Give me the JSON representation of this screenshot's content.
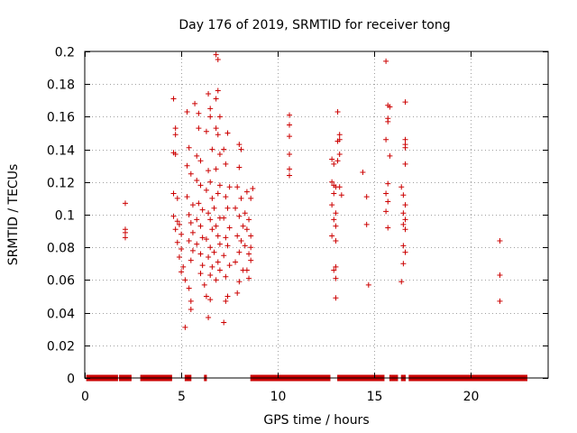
{
  "chart_data": {
    "type": "scatter",
    "title": "Day 176 of 2019, SRMTID for receiver tong",
    "xlabel": "GPS time / hours",
    "ylabel": "SRMTID / TECUs",
    "xlim": [
      0,
      24
    ],
    "ylim": [
      0,
      0.2
    ],
    "xticks": [
      0,
      5,
      10,
      15,
      20
    ],
    "xtick_labels": [
      "0",
      "5",
      "10",
      "15",
      "20"
    ],
    "yticks": [
      0,
      0.02,
      0.04,
      0.06,
      0.08,
      0.1,
      0.12,
      0.14,
      0.16,
      0.18,
      0.2
    ],
    "ytick_labels": [
      "0",
      "0.02",
      "0.04",
      "0.06",
      "0.08",
      "0.1",
      "0.12",
      "0.14",
      "0.16",
      "0.18",
      "0.2"
    ],
    "grid": true,
    "marker": "+",
    "color": "#cc0000",
    "series": [
      {
        "name": "SRMTID",
        "points": [
          [
            2.1,
            0.107
          ],
          [
            2.1,
            0.091
          ],
          [
            2.1,
            0.089
          ],
          [
            2.1,
            0.086
          ],
          [
            4.6,
            0.171
          ],
          [
            4.7,
            0.153
          ],
          [
            4.7,
            0.149
          ],
          [
            4.6,
            0.138
          ],
          [
            4.7,
            0.137
          ],
          [
            4.6,
            0.113
          ],
          [
            4.8,
            0.11
          ],
          [
            4.6,
            0.099
          ],
          [
            4.8,
            0.096
          ],
          [
            4.9,
            0.094
          ],
          [
            4.7,
            0.091
          ],
          [
            5.0,
            0.088
          ],
          [
            4.8,
            0.083
          ],
          [
            5.0,
            0.079
          ],
          [
            4.9,
            0.074
          ],
          [
            5.1,
            0.068
          ],
          [
            5.0,
            0.065
          ],
          [
            5.2,
            0.06
          ],
          [
            5.3,
            0.163
          ],
          [
            5.4,
            0.141
          ],
          [
            5.3,
            0.13
          ],
          [
            5.5,
            0.125
          ],
          [
            5.3,
            0.111
          ],
          [
            5.6,
            0.106
          ],
          [
            5.4,
            0.1
          ],
          [
            5.5,
            0.095
          ],
          [
            5.6,
            0.089
          ],
          [
            5.4,
            0.084
          ],
          [
            5.6,
            0.078
          ],
          [
            5.5,
            0.072
          ],
          [
            5.4,
            0.055
          ],
          [
            5.5,
            0.047
          ],
          [
            5.5,
            0.042
          ],
          [
            5.2,
            0.031
          ],
          [
            5.7,
            0.168
          ],
          [
            5.9,
            0.162
          ],
          [
            5.9,
            0.153
          ],
          [
            5.8,
            0.136
          ],
          [
            6.0,
            0.133
          ],
          [
            5.8,
            0.121
          ],
          [
            6.0,
            0.118
          ],
          [
            5.9,
            0.107
          ],
          [
            6.1,
            0.103
          ],
          [
            5.8,
            0.097
          ],
          [
            6.0,
            0.093
          ],
          [
            6.1,
            0.086
          ],
          [
            5.8,
            0.082
          ],
          [
            6.0,
            0.076
          ],
          [
            6.1,
            0.069
          ],
          [
            6.0,
            0.064
          ],
          [
            6.2,
            0.057
          ],
          [
            6.4,
            0.174
          ],
          [
            6.5,
            0.165
          ],
          [
            6.5,
            0.16
          ],
          [
            6.3,
            0.151
          ],
          [
            6.6,
            0.14
          ],
          [
            6.4,
            0.127
          ],
          [
            6.5,
            0.12
          ],
          [
            6.3,
            0.115
          ],
          [
            6.6,
            0.11
          ],
          [
            6.4,
            0.101
          ],
          [
            6.5,
            0.097
          ],
          [
            6.6,
            0.091
          ],
          [
            6.3,
            0.085
          ],
          [
            6.5,
            0.08
          ],
          [
            6.4,
            0.074
          ],
          [
            6.6,
            0.068
          ],
          [
            6.5,
            0.063
          ],
          [
            6.3,
            0.05
          ],
          [
            6.5,
            0.048
          ],
          [
            6.4,
            0.037
          ],
          [
            6.8,
            0.198
          ],
          [
            6.9,
            0.195
          ],
          [
            6.9,
            0.176
          ],
          [
            6.8,
            0.171
          ],
          [
            7.0,
            0.16
          ],
          [
            6.8,
            0.153
          ],
          [
            6.9,
            0.149
          ],
          [
            7.0,
            0.137
          ],
          [
            6.8,
            0.128
          ],
          [
            7.0,
            0.118
          ],
          [
            6.9,
            0.113
          ],
          [
            6.7,
            0.104
          ],
          [
            7.0,
            0.098
          ],
          [
            6.8,
            0.093
          ],
          [
            6.9,
            0.087
          ],
          [
            7.0,
            0.082
          ],
          [
            6.7,
            0.077
          ],
          [
            6.9,
            0.071
          ],
          [
            7.0,
            0.066
          ],
          [
            6.8,
            0.06
          ],
          [
            7.4,
            0.15
          ],
          [
            7.2,
            0.14
          ],
          [
            7.3,
            0.131
          ],
          [
            7.5,
            0.117
          ],
          [
            7.3,
            0.111
          ],
          [
            7.4,
            0.104
          ],
          [
            7.2,
            0.098
          ],
          [
            7.5,
            0.092
          ],
          [
            7.3,
            0.086
          ],
          [
            7.4,
            0.081
          ],
          [
            7.2,
            0.075
          ],
          [
            7.5,
            0.069
          ],
          [
            7.3,
            0.062
          ],
          [
            7.4,
            0.05
          ],
          [
            7.3,
            0.047
          ],
          [
            7.2,
            0.034
          ],
          [
            8.0,
            0.143
          ],
          [
            8.1,
            0.14
          ],
          [
            8.0,
            0.129
          ],
          [
            7.9,
            0.117
          ],
          [
            8.1,
            0.11
          ],
          [
            7.8,
            0.104
          ],
          [
            8.0,
            0.099
          ],
          [
            8.2,
            0.093
          ],
          [
            7.9,
            0.087
          ],
          [
            8.1,
            0.084
          ],
          [
            8.0,
            0.077
          ],
          [
            7.8,
            0.071
          ],
          [
            8.2,
            0.066
          ],
          [
            8.0,
            0.059
          ],
          [
            7.9,
            0.052
          ],
          [
            8.4,
            0.114
          ],
          [
            8.6,
            0.11
          ],
          [
            8.3,
            0.101
          ],
          [
            8.5,
            0.097
          ],
          [
            8.4,
            0.091
          ],
          [
            8.6,
            0.087
          ],
          [
            8.3,
            0.081
          ],
          [
            8.5,
            0.076
          ],
          [
            8.6,
            0.072
          ],
          [
            8.4,
            0.066
          ],
          [
            8.5,
            0.061
          ],
          [
            8.7,
            0.116
          ],
          [
            8.6,
            0.08
          ],
          [
            10.6,
            0.161
          ],
          [
            10.6,
            0.155
          ],
          [
            10.6,
            0.148
          ],
          [
            10.6,
            0.137
          ],
          [
            10.6,
            0.128
          ],
          [
            10.6,
            0.124
          ],
          [
            12.8,
            0.134
          ],
          [
            12.9,
            0.131
          ],
          [
            12.8,
            0.12
          ],
          [
            12.9,
            0.118
          ],
          [
            13.0,
            0.117
          ],
          [
            12.9,
            0.113
          ],
          [
            12.8,
            0.106
          ],
          [
            13.0,
            0.101
          ],
          [
            12.9,
            0.097
          ],
          [
            13.0,
            0.093
          ],
          [
            12.8,
            0.087
          ],
          [
            13.0,
            0.084
          ],
          [
            13.0,
            0.068
          ],
          [
            12.9,
            0.066
          ],
          [
            13.0,
            0.061
          ],
          [
            13.0,
            0.049
          ],
          [
            13.1,
            0.163
          ],
          [
            13.2,
            0.149
          ],
          [
            13.2,
            0.146
          ],
          [
            13.1,
            0.145
          ],
          [
            13.2,
            0.137
          ],
          [
            13.1,
            0.133
          ],
          [
            13.2,
            0.117
          ],
          [
            13.3,
            0.112
          ],
          [
            14.4,
            0.126
          ],
          [
            14.6,
            0.111
          ],
          [
            14.6,
            0.094
          ],
          [
            14.7,
            0.057
          ],
          [
            15.6,
            0.194
          ],
          [
            15.7,
            0.167
          ],
          [
            15.8,
            0.166
          ],
          [
            15.7,
            0.159
          ],
          [
            15.7,
            0.157
          ],
          [
            15.6,
            0.146
          ],
          [
            15.8,
            0.136
          ],
          [
            15.7,
            0.119
          ],
          [
            15.6,
            0.113
          ],
          [
            15.7,
            0.108
          ],
          [
            15.6,
            0.102
          ],
          [
            15.7,
            0.092
          ],
          [
            16.4,
            0.117
          ],
          [
            16.6,
            0.169
          ],
          [
            16.6,
            0.146
          ],
          [
            16.6,
            0.143
          ],
          [
            16.6,
            0.141
          ],
          [
            16.6,
            0.131
          ],
          [
            16.5,
            0.112
          ],
          [
            16.6,
            0.106
          ],
          [
            16.5,
            0.101
          ],
          [
            16.6,
            0.097
          ],
          [
            16.5,
            0.094
          ],
          [
            16.6,
            0.091
          ],
          [
            16.5,
            0.081
          ],
          [
            16.6,
            0.077
          ],
          [
            16.5,
            0.07
          ],
          [
            16.4,
            0.059
          ],
          [
            21.5,
            0.084
          ],
          [
            21.5,
            0.063
          ],
          [
            21.5,
            0.047
          ]
        ],
        "zero_segments": [
          [
            0.1,
            1.7
          ],
          [
            1.8,
            2.4
          ],
          [
            2.9,
            4.5
          ],
          [
            5.2,
            5.5
          ],
          [
            6.2,
            6.3
          ],
          [
            8.6,
            12.7
          ],
          [
            13.1,
            15.5
          ],
          [
            15.8,
            16.2
          ],
          [
            16.4,
            16.6
          ],
          [
            16.8,
            22.9
          ]
        ]
      }
    ]
  }
}
